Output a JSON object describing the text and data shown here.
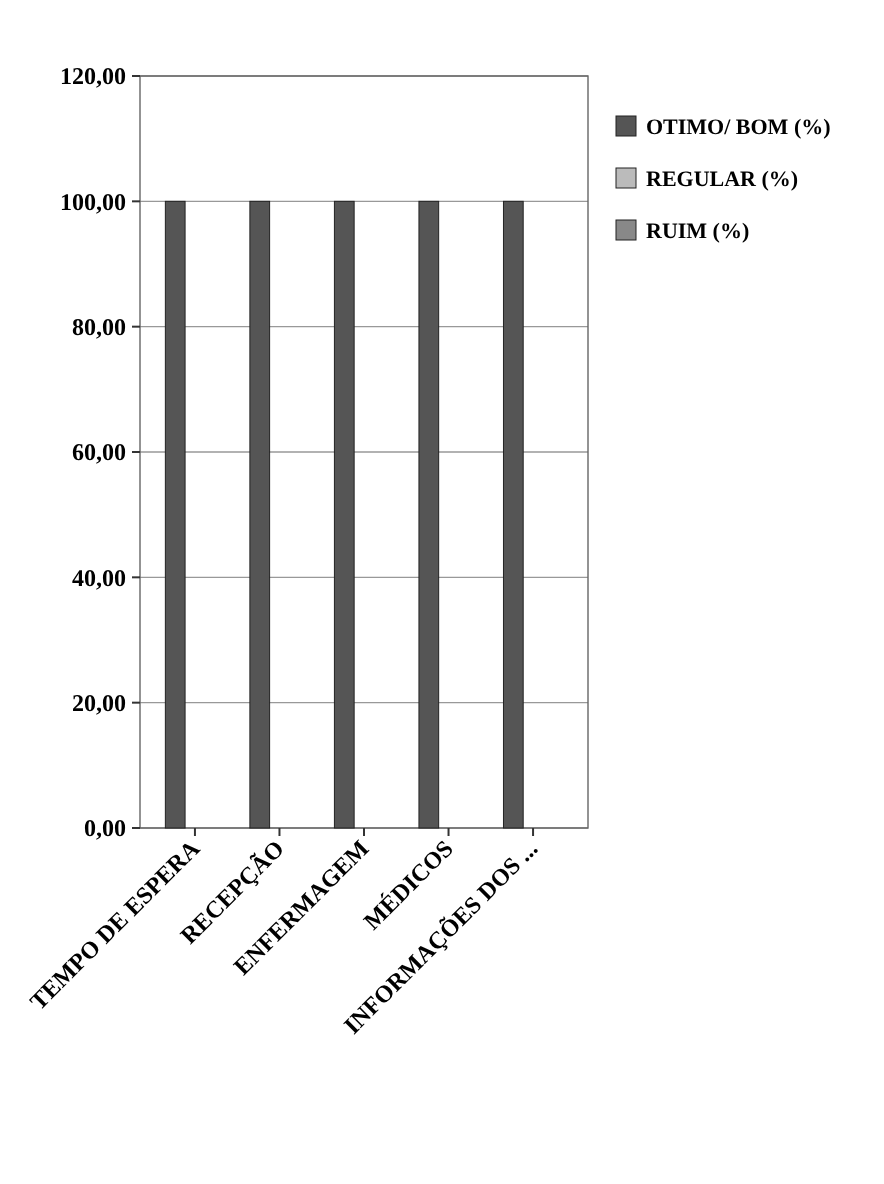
{
  "chart_data": {
    "type": "bar",
    "categories": [
      "TEMPO DE ESPERA",
      "RECEPÇÃO",
      "ENFERMAGEM",
      "MÉDICOS",
      "INFORMAÇÕES DOS ..."
    ],
    "series": [
      {
        "name": "OTIMO/ BOM (%)",
        "color": "#555555",
        "values": [
          100,
          100,
          100,
          100,
          100
        ]
      },
      {
        "name": "REGULAR (%)",
        "color": "#bbbbbb",
        "values": [
          0,
          0,
          0,
          0,
          0
        ]
      },
      {
        "name": "RUIM (%)",
        "color": "#888888",
        "values": [
          0,
          0,
          0,
          0,
          0
        ]
      }
    ],
    "ylim": [
      0,
      120
    ],
    "yticks": [
      {
        "value": 0,
        "label": "0,00"
      },
      {
        "value": 20,
        "label": "20,00"
      },
      {
        "value": 40,
        "label": "40,00"
      },
      {
        "value": 60,
        "label": "60,00"
      },
      {
        "value": 80,
        "label": "80,00"
      },
      {
        "value": 100,
        "label": "100,00"
      },
      {
        "value": 120,
        "label": "120,00"
      }
    ],
    "grid": "y",
    "legend": "right"
  }
}
